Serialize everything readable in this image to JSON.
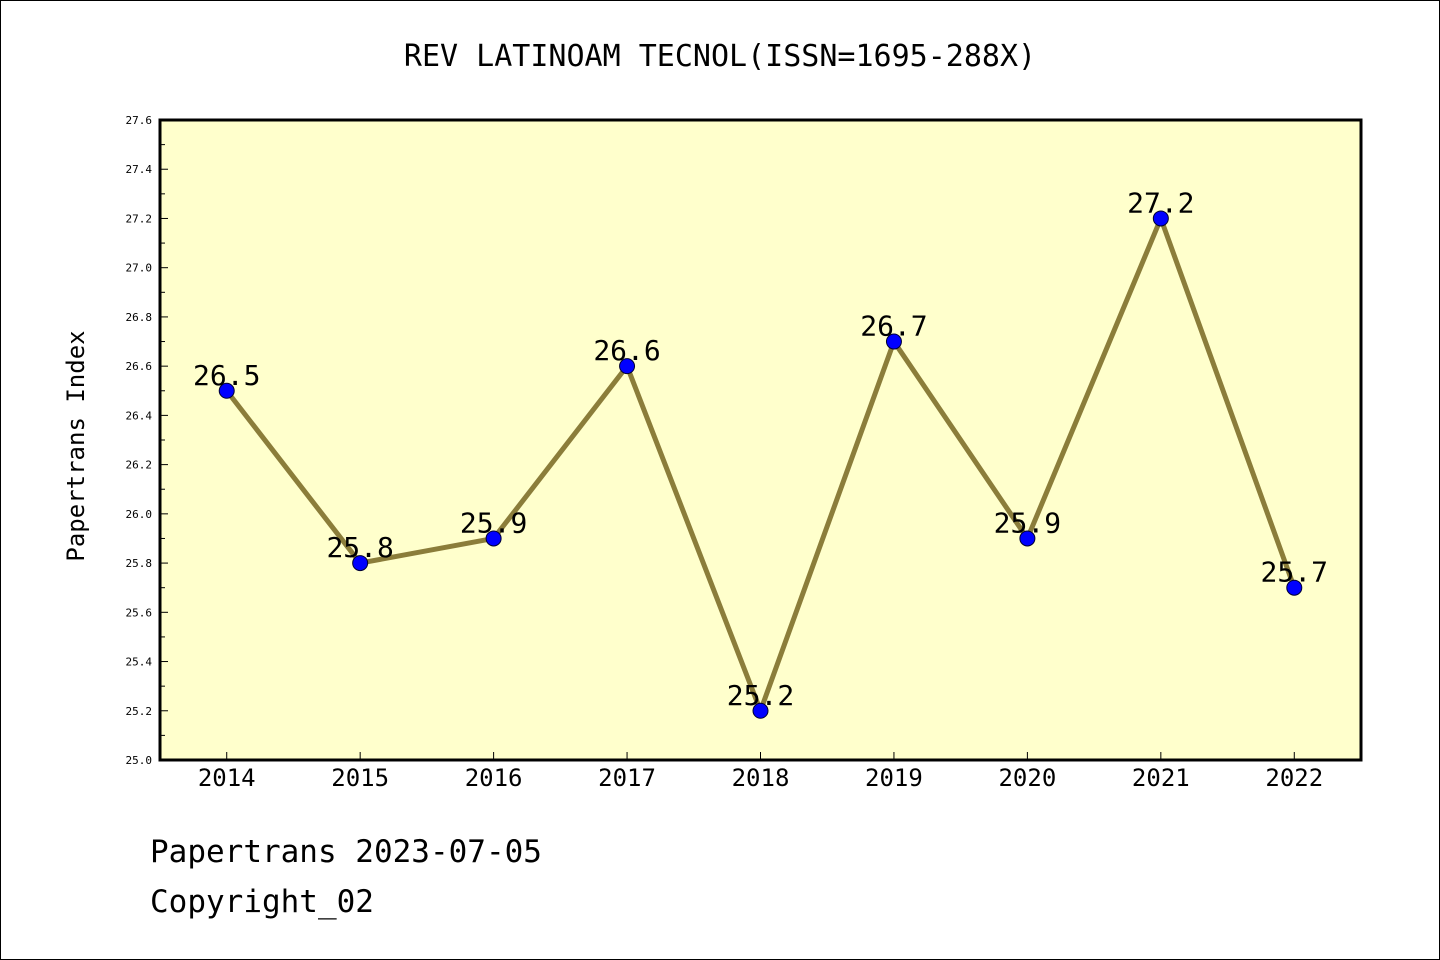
{
  "chart_data": {
    "type": "line",
    "title": "REV LATINOAM TECNOL(ISSN=1695-288X)",
    "xlabel": "",
    "ylabel": "Papertrans Index",
    "categories": [
      "2014",
      "2015",
      "2016",
      "2017",
      "2018",
      "2019",
      "2020",
      "2021",
      "2022"
    ],
    "values": [
      26.5,
      25.8,
      25.9,
      26.6,
      25.2,
      26.7,
      25.9,
      27.2,
      25.7
    ],
    "data_labels": [
      "26.5",
      "25.8",
      "25.9",
      "26.6",
      "25.2",
      "26.7",
      "25.9",
      "27.2",
      "25.7"
    ],
    "ylim": [
      25.0,
      27.6
    ],
    "yticks": [
      "25.0",
      "25.2",
      "25.4",
      "25.6",
      "25.8",
      "26.0",
      "26.2",
      "26.4",
      "26.6",
      "26.8",
      "27.0",
      "27.2",
      "27.4",
      "27.6"
    ],
    "grid": false,
    "legend": "none",
    "colors": {
      "plot_background": "#ffffcc",
      "line": "#8b7d3a",
      "marker": "#0000ff"
    }
  },
  "footer": {
    "date_line": "Papertrans 2023-07-05",
    "copyright": "Copyright_02"
  }
}
